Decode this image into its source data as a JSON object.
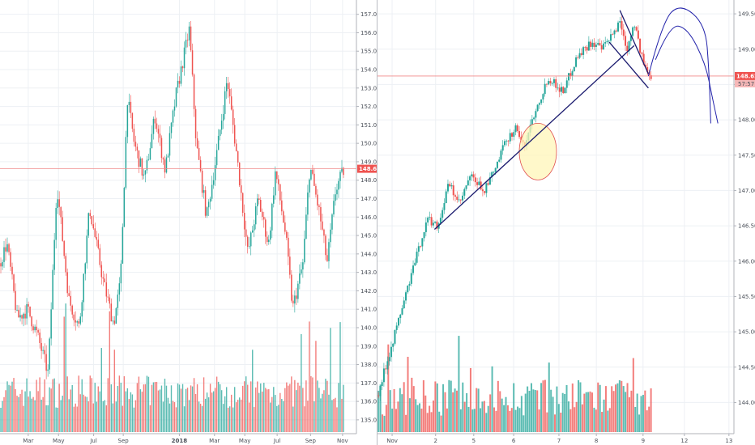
{
  "colors": {
    "up": "#26a69a",
    "down": "#ef5350",
    "grid": "#edf0f4",
    "axis_line": "#b0b3ba",
    "price_line": "#f08a8a",
    "drawing": "#1a1a6e",
    "highlight_fill": "#fff5b8",
    "highlight_stroke": "#e05050"
  },
  "chart_data": [
    {
      "type": "candlestick",
      "name": "left-panel",
      "x_ticks": [
        "Mar",
        "May",
        "Jul",
        "Sep",
        "2018",
        "Mar",
        "May",
        "Jul",
        "Sep",
        "Nov"
      ],
      "y_ticks": [
        "135.000",
        "136.000",
        "137.000",
        "138.000",
        "139.000",
        "140.000",
        "141.000",
        "142.000",
        "143.000",
        "144.000",
        "145.000",
        "146.000",
        "147.000",
        "148.000",
        "149.000",
        "150.000",
        "151.000",
        "152.000",
        "153.000",
        "154.000",
        "155.000",
        "156.000",
        "157.000"
      ],
      "ylim": [
        134.6,
        157.6
      ],
      "last_price_label": "148.620",
      "last_price": 148.62,
      "price_path": [
        {
          "t": 0.0,
          "p": 143.5
        },
        {
          "t": 0.02,
          "p": 144.6
        },
        {
          "t": 0.05,
          "p": 140.5
        },
        {
          "t": 0.08,
          "p": 141.0
        },
        {
          "t": 0.11,
          "p": 139.5
        },
        {
          "t": 0.14,
          "p": 137.5
        },
        {
          "t": 0.165,
          "p": 147.8
        },
        {
          "t": 0.2,
          "p": 141.5
        },
        {
          "t": 0.23,
          "p": 140.0
        },
        {
          "t": 0.26,
          "p": 146.5
        },
        {
          "t": 0.3,
          "p": 142.5
        },
        {
          "t": 0.33,
          "p": 140.2
        },
        {
          "t": 0.35,
          "p": 142.5
        },
        {
          "t": 0.37,
          "p": 152.5
        },
        {
          "t": 0.39,
          "p": 150.0
        },
        {
          "t": 0.42,
          "p": 148.0
        },
        {
          "t": 0.45,
          "p": 151.5
        },
        {
          "t": 0.48,
          "p": 148.5
        },
        {
          "t": 0.51,
          "p": 152.5
        },
        {
          "t": 0.55,
          "p": 156.2
        },
        {
          "t": 0.57,
          "p": 150.0
        },
        {
          "t": 0.6,
          "p": 146.0
        },
        {
          "t": 0.63,
          "p": 149.5
        },
        {
          "t": 0.66,
          "p": 153.5
        },
        {
          "t": 0.69,
          "p": 149.0
        },
        {
          "t": 0.72,
          "p": 144.0
        },
        {
          "t": 0.75,
          "p": 147.0
        },
        {
          "t": 0.78,
          "p": 144.5
        },
        {
          "t": 0.8,
          "p": 148.5
        },
        {
          "t": 0.83,
          "p": 145.0
        },
        {
          "t": 0.85,
          "p": 141.0
        },
        {
          "t": 0.88,
          "p": 143.5
        },
        {
          "t": 0.9,
          "p": 148.8
        },
        {
          "t": 0.93,
          "p": 146.0
        },
        {
          "t": 0.95,
          "p": 143.5
        },
        {
          "t": 0.975,
          "p": 147.5
        },
        {
          "t": 1.0,
          "p": 148.62
        }
      ]
    },
    {
      "type": "candlestick",
      "name": "right-panel",
      "x_ticks": [
        "Nov",
        "2",
        "5",
        "6",
        "7",
        "8",
        "9",
        "12",
        "13"
      ],
      "y_ticks": [
        "144.000",
        "144.500",
        "145.000",
        "145.500",
        "146.000",
        "146.500",
        "147.000",
        "147.500",
        "148.000",
        "148.500",
        "149.000",
        "149.500"
      ],
      "ylim": [
        143.65,
        149.65
      ],
      "last_price_label": "148.620",
      "countdown_label": "57:57",
      "last_price": 148.62,
      "price_path": [
        {
          "t": 0.0,
          "p": 144.1
        },
        {
          "t": 0.05,
          "p": 145.0
        },
        {
          "t": 0.1,
          "p": 145.9
        },
        {
          "t": 0.14,
          "p": 146.6
        },
        {
          "t": 0.17,
          "p": 146.5
        },
        {
          "t": 0.2,
          "p": 147.1
        },
        {
          "t": 0.23,
          "p": 146.8
        },
        {
          "t": 0.26,
          "p": 147.2
        },
        {
          "t": 0.3,
          "p": 147.0
        },
        {
          "t": 0.33,
          "p": 147.3
        },
        {
          "t": 0.36,
          "p": 147.7
        },
        {
          "t": 0.39,
          "p": 147.9
        },
        {
          "t": 0.41,
          "p": 147.6
        },
        {
          "t": 0.44,
          "p": 148.1
        },
        {
          "t": 0.48,
          "p": 148.6
        },
        {
          "t": 0.52,
          "p": 148.4
        },
        {
          "t": 0.56,
          "p": 148.9
        },
        {
          "t": 0.6,
          "p": 149.1
        },
        {
          "t": 0.63,
          "p": 149.0
        },
        {
          "t": 0.66,
          "p": 149.2
        },
        {
          "t": 0.68,
          "p": 149.4
        },
        {
          "t": 0.7,
          "p": 149.0
        },
        {
          "t": 0.72,
          "p": 149.4
        },
        {
          "t": 0.74,
          "p": 148.9
        },
        {
          "t": 0.76,
          "p": 148.62
        }
      ],
      "drawings": {
        "trendline": [
          {
            "t": 0.16,
            "p": 146.45
          },
          {
            "t": 0.72,
            "p": 149.05
          }
        ],
        "cross_line_a": [
          {
            "t": 0.65,
            "p": 149.1
          },
          {
            "t": 0.76,
            "p": 148.45
          }
        ],
        "cross_line_b": [
          {
            "t": 0.68,
            "p": 149.55
          },
          {
            "t": 0.76,
            "p": 148.65
          }
        ],
        "highlight_circle_center": {
          "t": 0.45,
          "p": 147.55
        },
        "projection_curves": [
          [
            {
              "t": 0.76,
              "p": 148.62
            },
            {
              "t": 0.8,
              "p": 149.4
            },
            {
              "t": 0.85,
              "p": 149.65
            },
            {
              "t": 0.92,
              "p": 149.35
            },
            {
              "t": 0.93,
              "p": 148.7
            },
            {
              "t": 0.935,
              "p": 147.95
            }
          ],
          [
            {
              "t": 0.78,
              "p": 148.85
            },
            {
              "t": 0.82,
              "p": 149.35
            },
            {
              "t": 0.87,
              "p": 149.3
            },
            {
              "t": 0.92,
              "p": 148.8
            },
            {
              "t": 0.94,
              "p": 148.3
            },
            {
              "t": 0.955,
              "p": 147.95
            }
          ]
        ]
      }
    }
  ]
}
